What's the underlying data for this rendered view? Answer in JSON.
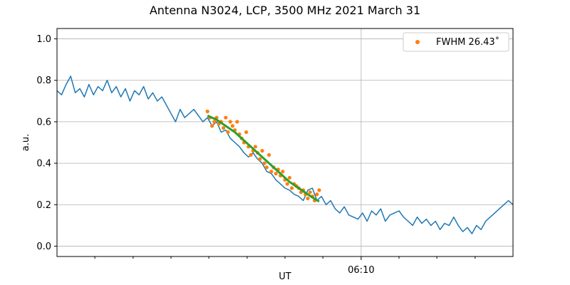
{
  "chart_data": {
    "type": "line",
    "title": "Antenna N3024, LCP, 3500 MHz 2021 March 31",
    "xlabel": "UT",
    "ylabel": "a.u.",
    "ylim": [
      -0.05,
      1.05
    ],
    "xlim": [
      0,
      1
    ],
    "y_ticks": [
      0.0,
      0.2,
      0.4,
      0.6,
      0.8,
      1.0
    ],
    "y_tick_labels": [
      "0.0",
      "0.2",
      "0.4",
      "0.6",
      "0.8",
      "1.0"
    ],
    "x_major_tick": {
      "value": 0.667,
      "label": "06:10"
    },
    "x_minor_ticks": [
      0.083,
      0.167,
      0.25,
      0.333,
      0.417,
      0.5,
      0.583,
      0.75,
      0.833,
      0.917
    ],
    "grid": true,
    "legend": {
      "placement": "top-right",
      "entries": [
        {
          "label": "FWHM 26.43$^\\circ$",
          "display": "FWHM 26.43˚",
          "color": "#ff7f0e",
          "marker": "dot"
        }
      ]
    },
    "series": [
      {
        "kind": "line",
        "color": "#1f77b4",
        "x": [
          0.0,
          0.01,
          0.02,
          0.03,
          0.04,
          0.05,
          0.06,
          0.07,
          0.08,
          0.09,
          0.1,
          0.11,
          0.12,
          0.13,
          0.14,
          0.15,
          0.16,
          0.17,
          0.18,
          0.19,
          0.2,
          0.21,
          0.22,
          0.23,
          0.24,
          0.25,
          0.26,
          0.27,
          0.28,
          0.29,
          0.3,
          0.31,
          0.32,
          0.33,
          0.34,
          0.35,
          0.36,
          0.37,
          0.38,
          0.39,
          0.4,
          0.41,
          0.42,
          0.43,
          0.44,
          0.45,
          0.46,
          0.47,
          0.48,
          0.49,
          0.5,
          0.51,
          0.52,
          0.53,
          0.54,
          0.55,
          0.56,
          0.57,
          0.58,
          0.59,
          0.6,
          0.61,
          0.62,
          0.63,
          0.64,
          0.65,
          0.66,
          0.67,
          0.68,
          0.69,
          0.7,
          0.71,
          0.72,
          0.73,
          0.74,
          0.75,
          0.76,
          0.77,
          0.78,
          0.79,
          0.8,
          0.81,
          0.82,
          0.83,
          0.84,
          0.85,
          0.86,
          0.87,
          0.88,
          0.89,
          0.9,
          0.91,
          0.92,
          0.93,
          0.94,
          0.95,
          0.96,
          0.97,
          0.98,
          0.99,
          1.0
        ],
        "y": [
          0.75,
          0.73,
          0.78,
          0.82,
          0.74,
          0.76,
          0.72,
          0.78,
          0.73,
          0.77,
          0.75,
          0.8,
          0.74,
          0.77,
          0.72,
          0.76,
          0.7,
          0.75,
          0.73,
          0.77,
          0.71,
          0.74,
          0.7,
          0.72,
          0.68,
          0.64,
          0.6,
          0.66,
          0.62,
          0.64,
          0.66,
          0.63,
          0.6,
          0.62,
          0.58,
          0.6,
          0.55,
          0.56,
          0.52,
          0.5,
          0.48,
          0.45,
          0.43,
          0.45,
          0.42,
          0.4,
          0.36,
          0.35,
          0.32,
          0.3,
          0.28,
          0.27,
          0.25,
          0.24,
          0.22,
          0.27,
          0.28,
          0.22,
          0.24,
          0.2,
          0.22,
          0.18,
          0.16,
          0.19,
          0.15,
          0.14,
          0.13,
          0.16,
          0.12,
          0.17,
          0.15,
          0.18,
          0.12,
          0.15,
          0.16,
          0.17,
          0.14,
          0.12,
          0.1,
          0.14,
          0.11,
          0.13,
          0.1,
          0.12,
          0.08,
          0.11,
          0.1,
          0.14,
          0.1,
          0.07,
          0.09,
          0.06,
          0.1,
          0.08,
          0.12,
          0.14,
          0.16,
          0.18,
          0.2,
          0.22,
          0.2
        ]
      },
      {
        "kind": "scatter",
        "color": "#ff7f0e",
        "name": "FWHM 26.43˚",
        "x": [
          0.33,
          0.335,
          0.34,
          0.345,
          0.35,
          0.355,
          0.36,
          0.365,
          0.37,
          0.375,
          0.38,
          0.385,
          0.39,
          0.395,
          0.4,
          0.405,
          0.41,
          0.415,
          0.42,
          0.425,
          0.43,
          0.435,
          0.44,
          0.445,
          0.45,
          0.455,
          0.46,
          0.465,
          0.47,
          0.475,
          0.48,
          0.485,
          0.49,
          0.495,
          0.5,
          0.505,
          0.51,
          0.515,
          0.52,
          0.525,
          0.53,
          0.535,
          0.54,
          0.545,
          0.55,
          0.555,
          0.56,
          0.565,
          0.57,
          0.575
        ],
        "y": [
          0.65,
          0.62,
          0.58,
          0.6,
          0.62,
          0.59,
          0.6,
          0.57,
          0.62,
          0.55,
          0.6,
          0.58,
          0.56,
          0.6,
          0.54,
          0.52,
          0.5,
          0.55,
          0.48,
          0.44,
          0.46,
          0.48,
          0.45,
          0.42,
          0.46,
          0.4,
          0.38,
          0.44,
          0.36,
          0.38,
          0.35,
          0.37,
          0.34,
          0.36,
          0.32,
          0.3,
          0.33,
          0.28,
          0.3,
          0.29,
          0.28,
          0.26,
          0.27,
          0.25,
          0.23,
          0.26,
          0.24,
          0.22,
          0.25,
          0.27
        ]
      },
      {
        "kind": "line",
        "color": "#2ca02c",
        "name": "fit",
        "x": [
          0.33,
          0.35,
          0.37,
          0.39,
          0.41,
          0.43,
          0.45,
          0.47,
          0.49,
          0.51,
          0.53,
          0.55,
          0.56,
          0.575
        ],
        "y": [
          0.63,
          0.61,
          0.58,
          0.55,
          0.51,
          0.47,
          0.43,
          0.39,
          0.35,
          0.31,
          0.28,
          0.25,
          0.235,
          0.215
        ]
      }
    ]
  }
}
